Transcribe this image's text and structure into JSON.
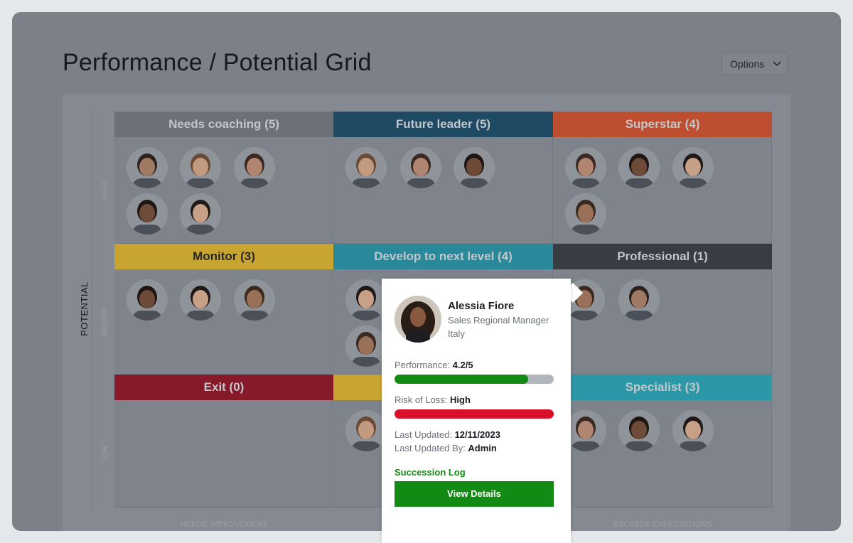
{
  "header": {
    "title": "Performance / Potential Grid",
    "options": "Options"
  },
  "grid": {
    "y_axis": "POTENTIAL",
    "rows": [
      "HIGH",
      "MEDIUM",
      "LOW"
    ],
    "columns": [
      "NEEDS IMPROVEMENT",
      null,
      "EXCEEDS EXPECTATIONS"
    ],
    "cells": [
      {
        "title": "Needs coaching (5)",
        "color": "#6c7079"
      },
      {
        "title": "Future leader (5)",
        "color": "#1e4a63"
      },
      {
        "title": "Superstar (4)",
        "color": "#bd4f30"
      },
      {
        "title": "Monitor (3)",
        "color": "#c7a530",
        "text_color": "#26282c"
      },
      {
        "title": "Develop to next level (4)",
        "color": "#29899a"
      },
      {
        "title": "Professional (1)",
        "color": "#383c43"
      },
      {
        "title": "Exit (0)",
        "color": "#861a2b"
      },
      {
        "color": "#c7a530"
      },
      {
        "title": "Specialist (3)",
        "color": "#2a98a6"
      }
    ]
  },
  "popup": {
    "name": "Alessia Fiore",
    "role": "Sales Regional Manager",
    "location": "Italy",
    "performance": {
      "label": "Performance:",
      "score": 4.2,
      "separator": "/",
      "max": 5,
      "color": "#138a13"
    },
    "risk": {
      "label": "Risk of Loss:",
      "value": "High",
      "color": "#d9102a"
    },
    "last_updated": {
      "label": "Last Updated:",
      "value": "12/11/2023"
    },
    "last_updated_by": {
      "label": "Last Updated By:",
      "value": "Admin"
    },
    "link": "Succession Log",
    "button": "View Details"
  }
}
